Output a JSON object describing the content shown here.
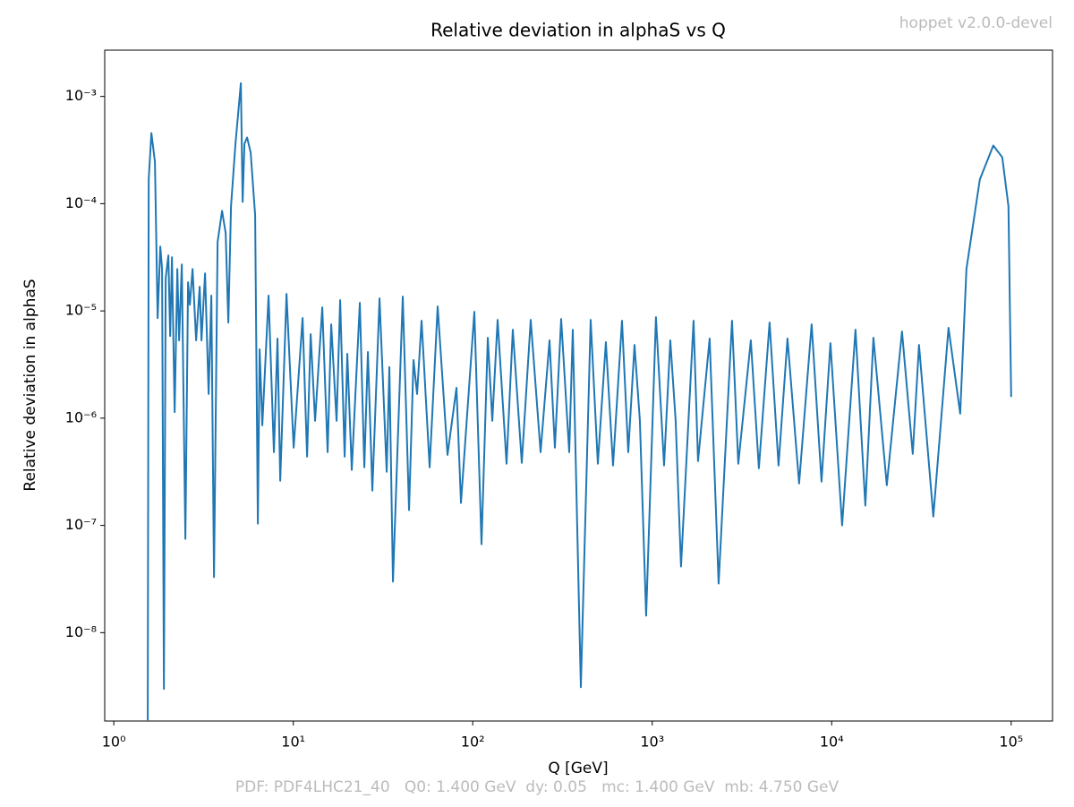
{
  "chart_data": {
    "type": "line",
    "title": "Relative deviation in alphaS vs Q",
    "watermark": "hoppet v2.0.0-devel",
    "footer": "PDF: PDF4LHC21_40   Q0: 1.400 GeV  dy: 0.05   mc: 1.400 GeV  mb: 4.750 GeV",
    "x_label": "Q [GeV]",
    "y_label": "Relative deviation in alphaS",
    "log_x": true,
    "log_y": true,
    "color": "#1f77b4",
    "xlim": [
      0.89,
      170000
    ],
    "ylim": [
      1.5e-09,
      0.0027
    ],
    "xticks": [
      {
        "value": 1,
        "label": "10⁰"
      },
      {
        "value": 10,
        "label": "10¹"
      },
      {
        "value": 100,
        "label": "10²"
      },
      {
        "value": 1000,
        "label": "10³"
      },
      {
        "value": 10000,
        "label": "10⁴"
      },
      {
        "value": 100000,
        "label": "10⁵"
      }
    ],
    "yticks": [
      {
        "value": 1e-08,
        "label": "10⁻⁸"
      },
      {
        "value": 1e-07,
        "label": "10⁻⁷"
      },
      {
        "value": 1e-06,
        "label": "10⁻⁶"
      },
      {
        "value": 1e-05,
        "label": "10⁻⁵"
      },
      {
        "value": 0.0001,
        "label": "10⁻⁴"
      },
      {
        "value": 0.001,
        "label": "10⁻³"
      }
    ],
    "x": [
      1.546,
      1.565,
      1.62,
      1.695,
      1.755,
      1.816,
      1.858,
      1.902,
      1.946,
      2.014,
      2.061,
      2.109,
      2.183,
      2.259,
      2.312,
      2.393,
      2.505,
      2.593,
      2.653,
      2.747,
      2.875,
      3.01,
      3.08,
      3.225,
      3.376,
      3.495,
      3.617,
      3.787,
      4.011,
      4.201,
      4.347,
      4.499,
      4.764,
      5.105,
      5.223,
      5.344,
      5.531,
      5.79,
      6.132,
      6.348,
      6.495,
      6.723,
      7.284,
      7.8,
      8.17,
      8.46,
      9.17,
      10.05,
      11.27,
      11.94,
      12.5,
      13.23,
      14.51,
      15.54,
      16.27,
      17.43,
      18.25,
      19.33,
      20.0,
      21.18,
      23.49,
      24.88,
      26.05,
      27.58,
      30.24,
      33.15,
      34.31,
      35.93,
      40.75,
      44.17,
      46.77,
      48.97,
      51.87,
      57.51,
      63.76,
      72.35,
      81.17,
      85.97,
      102.1,
      111.9,
      121.3,
      128.5,
      137.6,
      154.3,
      167.2,
      187.6,
      210.4,
      238.8,
      267.8,
      286.9,
      310.9,
      344.8,
      360.9,
      400.2,
      454,
      497.7,
      551.8,
      604.9,
      678.6,
      735.3,
      796.8,
      853.6,
      925,
      1049,
      1164,
      1261,
      1351,
      1447,
      1700,
      1800,
      2089,
      2344,
      2784,
      3017,
      3544,
      3929,
      4508,
      5057,
      5672,
      6584,
      7731,
      8776,
      9840,
      11430,
      13570,
      15400,
      17080,
      20280,
      24650,
      28290,
      30660,
      36840,
      44770,
      52000,
      56340,
      66910,
      79520,
      89180,
      96600,
      100000
    ],
    "values": [
      1.525e-09,
      0.0001679,
      0.000455,
      0.000246,
      8.58e-06,
      3.98e-05,
      2.46e-05,
      2.99e-09,
      2.03e-05,
      3.29e-05,
      5.84e-06,
      3.16e-05,
      1.14e-06,
      2.46e-05,
      5.31e-06,
      2.71e-05,
      7.5e-08,
      1.85e-05,
      1.14e-05,
      2.46e-05,
      5.31e-06,
      1.68e-05,
      5.31e-06,
      2.24e-05,
      1.68e-06,
      1.39e-05,
      3.29e-08,
      4.38e-05,
      8.58e-05,
      5.31e-05,
      7.79e-06,
      9.44e-05,
      0.000362,
      0.00133,
      0.000104,
      0.000362,
      0.000414,
      0.000299,
      7.79e-05,
      1.04e-07,
      4.38e-06,
      8.58e-07,
      1.39e-05,
      4.82e-07,
      5.52e-06,
      2.61e-07,
      1.44e-05,
      5.31e-07,
      8.58e-06,
      4.38e-07,
      6.07e-06,
      9.44e-07,
      1.08e-05,
      4.82e-07,
      7.5e-06,
      9.44e-07,
      1.26e-05,
      4.38e-07,
      3.98e-06,
      3.29e-07,
      1.19e-05,
      3.48e-07,
      4.14e-06,
      2.11e-07,
      1.31e-05,
      3.16e-07,
      2.99e-06,
      2.99e-08,
      1.36e-05,
      1.39e-07,
      3.48e-06,
      1.68e-06,
      8.1e-06,
      3.48e-07,
      1.1e-05,
      4.55e-07,
      1.92e-06,
      1.62e-07,
      9.81e-06,
      6.68e-08,
      5.62e-06,
      9.44e-07,
      8.25e-06,
      3.76e-07,
      6.68e-06,
      3.83e-07,
      8.25e-06,
      4.82e-07,
      5.31e-06,
      5.31e-07,
      8.41e-06,
      4.82e-07,
      6.68e-06,
      3.1e-09,
      8.25e-06,
      3.76e-07,
      5.11e-06,
      3.62e-07,
      8.1e-06,
      4.82e-07,
      4.82e-06,
      9.44e-07,
      1.44e-08,
      8.74e-06,
      3.62e-07,
      5.31e-06,
      9.44e-07,
      4.14e-08,
      8.1e-06,
      3.98e-07,
      5.52e-06,
      2.87e-08,
      8.1e-06,
      3.76e-07,
      5.31e-06,
      3.41e-07,
      7.79e-06,
      3.62e-07,
      5.52e-06,
      2.46e-07,
      7.5e-06,
      2.56e-07,
      5.01e-06,
      1e-07,
      6.68e-06,
      1.53e-07,
      5.62e-06,
      2.37e-07,
      6.43e-06,
      4.64e-07,
      4.82e-06,
      1.21e-07,
      6.95e-06,
      1.1e-06,
      2.46e-05,
      0.000168,
      0.000348,
      0.000271,
      9.44e-05,
      1.58e-06
    ]
  }
}
